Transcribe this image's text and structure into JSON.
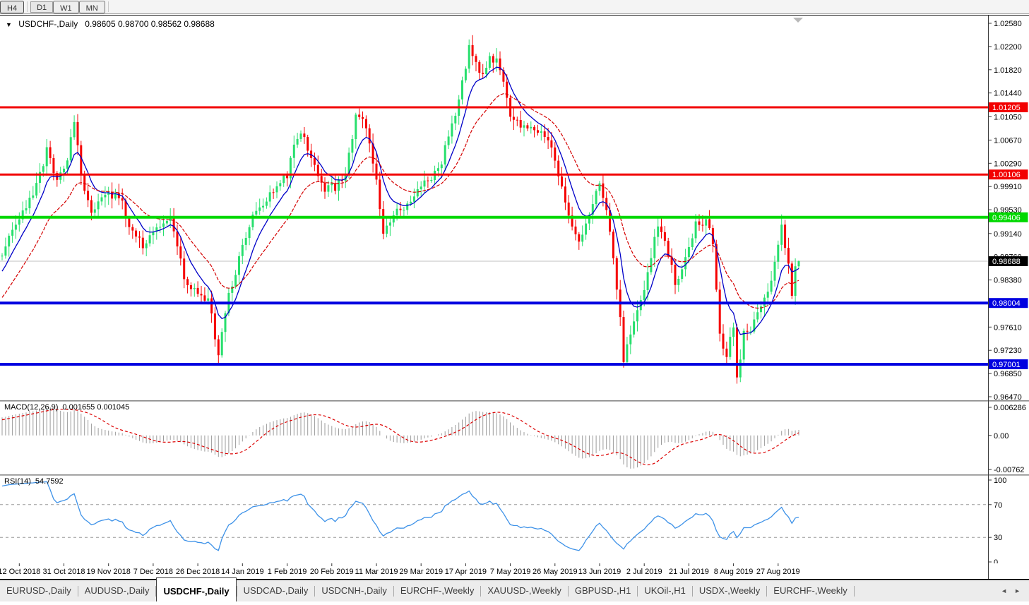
{
  "toolbar": {
    "timeframes": [
      {
        "label": "H4",
        "active": false
      },
      {
        "label": "D1",
        "active": true
      },
      {
        "label": "W1",
        "active": false
      },
      {
        "label": "MN",
        "active": false
      }
    ]
  },
  "colors": {
    "bull": "#27DF6D",
    "bear": "#F50000",
    "ma_fast": "#0000C8",
    "ma_slow": "#D40000",
    "hline_red": "#F20000",
    "hline_green": "#00D800",
    "hline_blue": "#0000E0",
    "current_line": "#C0C0C0",
    "badge_black": "#000000",
    "macd_hist": "#9B9B9B",
    "macd_signal": "#DC0000",
    "rsi_line": "#3E92E8",
    "level_dash": "#9A9A9A",
    "axis_text": "#000000"
  },
  "chart_data": {
    "type": "candlestick",
    "symbol": "USDCHF-",
    "timeframe": "Daily",
    "title": "USDCHF-,Daily",
    "ohlc_text": "0.98605 0.98700 0.98562 0.98688",
    "ohlc_current": {
      "open": 0.98605,
      "high": 0.987,
      "low": 0.98562,
      "close": 0.98688
    },
    "price_ylim": [
      0.9647,
      1.0258
    ],
    "price_axis_ticks": [
      "1.02580",
      "1.02200",
      "1.01820",
      "1.01440",
      "1.01050",
      "1.00670",
      "1.00290",
      "0.99910",
      "0.99530",
      "0.99140",
      "0.98760",
      "0.98380",
      "0.97610",
      "0.97230",
      "0.96850",
      "0.96470"
    ],
    "axis_badges": [
      {
        "text": "1.01205",
        "bg": "#F20000"
      },
      {
        "text": "1.00106",
        "bg": "#F20000"
      },
      {
        "text": "0.99406",
        "bg": "#00D800"
      },
      {
        "text": "0.98688",
        "bg": "#000000"
      },
      {
        "text": "0.98004",
        "bg": "#0000E0"
      },
      {
        "text": "0.97001",
        "bg": "#0000E0"
      }
    ],
    "hlines": [
      {
        "value": 1.01205,
        "color": "#F20000",
        "width": 3
      },
      {
        "value": 1.00106,
        "color": "#F20000",
        "width": 3
      },
      {
        "value": 0.99406,
        "color": "#00D800",
        "width": 4
      },
      {
        "value": 0.98004,
        "color": "#0000E0",
        "width": 4
      },
      {
        "value": 0.97001,
        "color": "#0000E0",
        "width": 4
      }
    ],
    "current_price_line": {
      "value": 0.98688,
      "color": "#C0C0C0"
    },
    "bars_total": 233,
    "close_anchors": [
      [
        -24,
        0.969
      ],
      [
        -16,
        0.9752
      ],
      [
        -8,
        0.9818
      ],
      [
        -3,
        0.9855
      ],
      [
        0,
        0.9878
      ],
      [
        3,
        0.9916
      ],
      [
        6,
        0.9946
      ],
      [
        10,
        0.9992
      ],
      [
        13,
        1.005
      ],
      [
        16,
        1.0006
      ],
      [
        19,
        1.004
      ],
      [
        21,
        1.0098
      ],
      [
        23,
        1.0005
      ],
      [
        26,
        0.994
      ],
      [
        30,
        0.9982
      ],
      [
        34,
        0.9976
      ],
      [
        38,
        0.9918
      ],
      [
        41,
        0.9896
      ],
      [
        45,
        0.9932
      ],
      [
        49,
        0.9936
      ],
      [
        53,
        0.9845
      ],
      [
        57,
        0.9815
      ],
      [
        60,
        0.9802
      ],
      [
        63,
        0.9722
      ],
      [
        66,
        0.9812
      ],
      [
        70,
        0.9895
      ],
      [
        74,
        0.9958
      ],
      [
        79,
        0.9978
      ],
      [
        83,
        1.0008
      ],
      [
        86,
        1.0075
      ],
      [
        89,
        1.0058
      ],
      [
        93,
        0.999
      ],
      [
        97,
        0.9992
      ],
      [
        100,
        1.001
      ],
      [
        103,
        1.0105
      ],
      [
        106,
        1.0088
      ],
      [
        109,
        1.0002
      ],
      [
        111,
        0.9914
      ],
      [
        114,
        0.9946
      ],
      [
        118,
        0.996
      ],
      [
        122,
        0.9998
      ],
      [
        127,
        1.0018
      ],
      [
        130,
        1.0068
      ],
      [
        133,
        1.013
      ],
      [
        136,
        1.022
      ],
      [
        138,
        1.0192
      ],
      [
        140,
        1.0176
      ],
      [
        142,
        1.0198
      ],
      [
        144,
        1.0204
      ],
      [
        146,
        1.0156
      ],
      [
        148,
        1.0104
      ],
      [
        151,
        1.0086
      ],
      [
        154,
        1.0096
      ],
      [
        157,
        1.0078
      ],
      [
        160,
        1.005
      ],
      [
        163,
        0.9988
      ],
      [
        165,
        0.9938
      ],
      [
        168,
        0.9902
      ],
      [
        171,
        0.9942
      ],
      [
        174,
        1.0002
      ],
      [
        176,
        0.9958
      ],
      [
        179,
        0.9828
      ],
      [
        181,
        0.9712
      ],
      [
        183,
        0.975
      ],
      [
        186,
        0.9802
      ],
      [
        189,
        0.9872
      ],
      [
        191,
        0.9934
      ],
      [
        194,
        0.9882
      ],
      [
        196,
        0.9836
      ],
      [
        199,
        0.9872
      ],
      [
        202,
        0.9932
      ],
      [
        205,
        0.9936
      ],
      [
        207,
        0.9902
      ],
      [
        209,
        0.9742
      ],
      [
        211,
        0.9716
      ],
      [
        213,
        0.9762
      ],
      [
        214,
        0.9672
      ],
      [
        216,
        0.9748
      ],
      [
        218,
        0.9754
      ],
      [
        221,
        0.9792
      ],
      [
        224,
        0.9832
      ],
      [
        227,
        0.9924
      ],
      [
        229,
        0.9868
      ],
      [
        230,
        0.9812
      ],
      [
        231,
        0.9861
      ],
      [
        232,
        0.98688
      ]
    ],
    "x_dates": [
      "12 Oct 2018",
      "31 Oct 2018",
      "19 Nov 2018",
      "7 Dec 2018",
      "26 Dec 2018",
      "14 Jan 2019",
      "1 Feb 2019",
      "20 Feb 2019",
      "11 Mar 2019",
      "29 Mar 2019",
      "17 Apr 2019",
      "7 May 2019",
      "26 May 2019",
      "13 Jun 2019",
      "2 Jul 2019",
      "21 Jul 2019",
      "8 Aug 2019",
      "27 Aug 2019"
    ],
    "moving_averages": [
      {
        "period": 8,
        "color": "#0000C8"
      },
      {
        "period": 21,
        "color": "#D40000"
      }
    ],
    "macd": {
      "label": "MACD(12,26,9)",
      "values_text": "0.001655 0.001045",
      "macd_value": 0.001655,
      "signal_value": 0.001045,
      "ylim": [
        -0.00762,
        0.006286
      ],
      "yticks": [
        "0.006286",
        "0.00",
        "-0.00762"
      ]
    },
    "rsi": {
      "label": "RSI(14)",
      "value_text": "54.7592",
      "value": 54.7592,
      "ylim": [
        0,
        100
      ],
      "yticks": [
        "100",
        "70",
        "30",
        "0"
      ],
      "levels": [
        70,
        30
      ]
    }
  },
  "tabs": {
    "items": [
      {
        "label": "EURUSD-,Daily",
        "active": false
      },
      {
        "label": "AUDUSD-,Daily",
        "active": false
      },
      {
        "label": "USDCHF-,Daily",
        "active": true
      },
      {
        "label": "USDCAD-,Daily",
        "active": false
      },
      {
        "label": "USDCNH-,Daily",
        "active": false
      },
      {
        "label": "EURCHF-,Weekly",
        "active": false
      },
      {
        "label": "XAUUSD-,Weekly",
        "active": false
      },
      {
        "label": "GBPUSD-,H1",
        "active": false
      },
      {
        "label": "UKOil-,H1",
        "active": false
      },
      {
        "label": "USDX-,Weekly",
        "active": false
      },
      {
        "label": "EURCHF-,Weekly",
        "active": false
      }
    ],
    "nav_left": "◄",
    "nav_right": "►"
  }
}
